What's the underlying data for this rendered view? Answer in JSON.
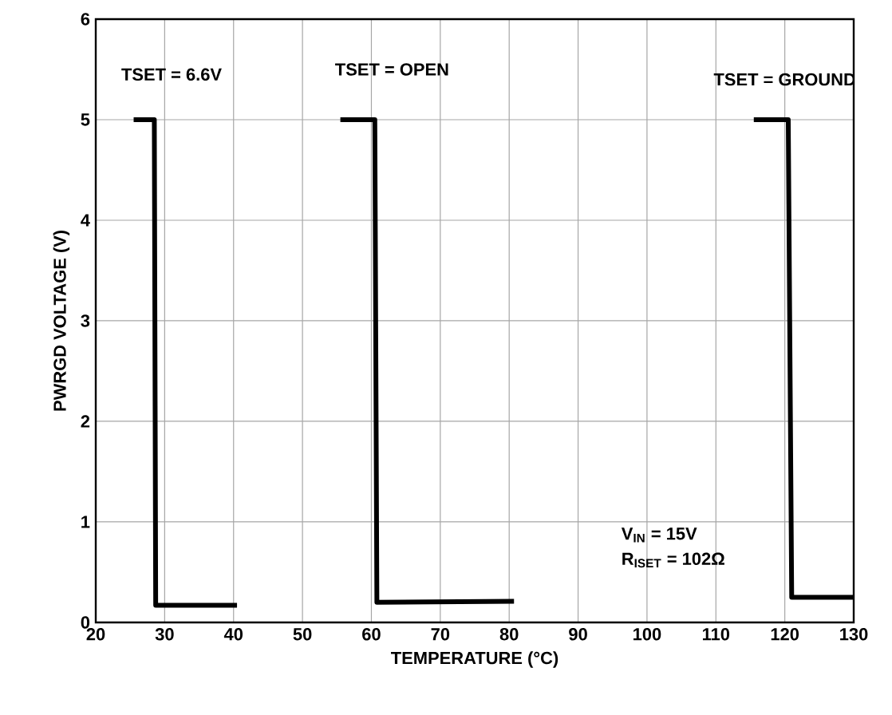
{
  "chart_data": {
    "type": "line",
    "xlabel": "TEMPERATURE (°C)",
    "ylabel": "PWRGD VOLTAGE (V)",
    "series": [
      {
        "color": "#000000",
        "x": [
          25.5,
          28.5,
          28.7,
          40.5
        ],
        "values": [
          5,
          5,
          0.17,
          0.17
        ]
      },
      {
        "color": "#000000",
        "x": [
          55.5,
          60.5,
          60.8,
          80.7
        ],
        "values": [
          5,
          5,
          0.2,
          0.21
        ]
      },
      {
        "color": "#000000",
        "x": [
          115.5,
          120.5,
          121,
          130
        ],
        "values": [
          5,
          5,
          0.25,
          0.25
        ]
      }
    ],
    "annotations": [
      "TSET = 6.6V",
      "TSET = OPEN",
      "TSET = GROUND",
      "V$_{IN}$ = 15V",
      "R$_{ISET}$ = 102Ω"
    ],
    "xlim": [
      20,
      130
    ],
    "xticks": [
      20,
      30,
      40,
      50,
      60,
      70,
      80,
      90,
      100,
      110,
      120,
      130
    ],
    "ylim": [
      0,
      6
    ],
    "yticks": [
      0,
      1,
      2,
      3,
      4,
      5,
      6
    ],
    "grid": true,
    "marker": "none",
    "line_style": "solid"
  }
}
